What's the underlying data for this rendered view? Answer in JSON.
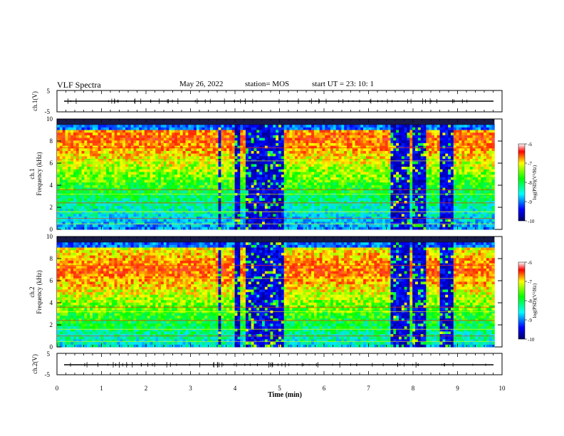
{
  "header": {
    "title": "VLF Spectra",
    "date": "May 26, 2022",
    "station": "station= MOS",
    "start_ut": "start  UT  =   23: 10: 1"
  },
  "chart_data": [
    {
      "type": "line",
      "panel": "ch1-waveform",
      "ylabel": "ch.1(V)",
      "ylim": [
        -5,
        5
      ],
      "yticks": [
        "5",
        "-5"
      ],
      "xlim": [
        0,
        10
      ],
      "series": [
        {
          "values_description_free": true,
          "baseline": 0
        }
      ]
    },
    {
      "type": "heatmap",
      "panel": "ch1-spectrogram",
      "ylabel": "ch.1\nFrequency (kHz)",
      "ylim": [
        0,
        10
      ],
      "yticks": [
        "0",
        "2",
        "4",
        "6",
        "8",
        "10"
      ],
      "xlim": [
        0,
        10
      ],
      "colorbar": {
        "label": "log(PSD)(V²/Hz)",
        "range": [
          -10,
          -6
        ],
        "ticks": [
          "-6",
          "-7",
          "-8",
          "-9",
          "-10"
        ]
      },
      "dark_gaps_min": [
        [
          3.6,
          3.7
        ],
        [
          4.0,
          4.1
        ],
        [
          4.25,
          5.1
        ],
        [
          7.5,
          7.9
        ],
        [
          8.0,
          8.3
        ],
        [
          8.6,
          8.9
        ]
      ]
    },
    {
      "type": "heatmap",
      "panel": "ch2-spectrogram",
      "ylabel": "ch.2\nFrequency (kHz)",
      "ylim": [
        0,
        10
      ],
      "yticks": [
        "0",
        "2",
        "4",
        "6",
        "8",
        "10"
      ],
      "xlim": [
        0,
        10
      ],
      "colorbar": {
        "label": "log(PSD)(V²/Hz)",
        "range": [
          -10,
          -6
        ],
        "ticks": [
          "-6",
          "-7",
          "-8",
          "-9",
          "-10"
        ]
      },
      "dark_gaps_min": [
        [
          3.6,
          3.7
        ],
        [
          4.0,
          4.1
        ],
        [
          4.25,
          5.1
        ],
        [
          7.5,
          7.9
        ],
        [
          8.0,
          8.3
        ],
        [
          8.6,
          8.9
        ]
      ]
    },
    {
      "type": "line",
      "panel": "ch2-waveform",
      "ylabel": "ch.2(V)",
      "ylim": [
        -5,
        5
      ],
      "yticks": [
        "5",
        "-5"
      ],
      "xlim": [
        0,
        10
      ],
      "xlabel": "Time  (min)",
      "xticks": [
        "0",
        "1",
        "2",
        "3",
        "4",
        "5",
        "6",
        "7",
        "8",
        "9",
        "10"
      ],
      "series": [
        {
          "baseline": 0
        }
      ]
    }
  ]
}
